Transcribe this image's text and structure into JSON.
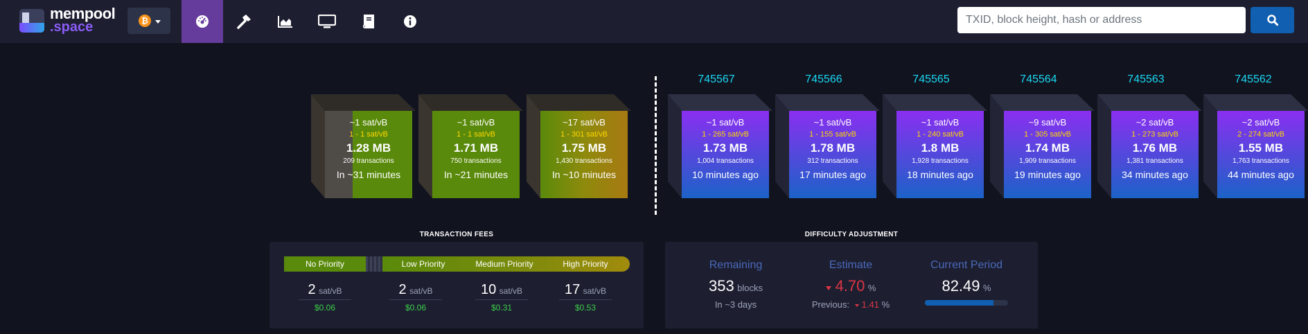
{
  "brand": {
    "name": "mempool",
    "suffix": ".space"
  },
  "network": {
    "icon": "bitcoin-icon",
    "symbol": "₿"
  },
  "nav": [
    {
      "name": "dashboard",
      "icon": "gauge-icon",
      "active": true
    },
    {
      "name": "mining",
      "icon": "hammer-icon"
    },
    {
      "name": "graphs",
      "icon": "area-chart-icon"
    },
    {
      "name": "tv-view",
      "icon": "monitor-icon"
    },
    {
      "name": "documentation",
      "icon": "book-icon"
    },
    {
      "name": "about",
      "icon": "info-icon"
    }
  ],
  "search": {
    "placeholder": "TXID, block height, hash or address",
    "button_icon": "search-icon"
  },
  "pending_blocks": [
    {
      "fee": "~1 sat/vB",
      "range": "1 - 1 sat/vB",
      "size": "1.28 MB",
      "txs": "209 transactions",
      "eta": "In ~31 minutes"
    },
    {
      "fee": "~1 sat/vB",
      "range": "1 - 1 sat/vB",
      "size": "1.71 MB",
      "txs": "750 transactions",
      "eta": "In ~21 minutes"
    },
    {
      "fee": "~17 sat/vB",
      "range": "1 - 301 sat/vB",
      "size": "1.75 MB",
      "txs": "1,430 transactions",
      "eta": "In ~10 minutes"
    }
  ],
  "mined_blocks": [
    {
      "height": "745567",
      "fee": "~1 sat/vB",
      "range": "1 - 265 sat/vB",
      "size": "1.73 MB",
      "txs": "1,004 transactions",
      "age": "10 minutes ago"
    },
    {
      "height": "745566",
      "fee": "~1 sat/vB",
      "range": "1 - 155 sat/vB",
      "size": "1.78 MB",
      "txs": "312 transactions",
      "age": "17 minutes ago"
    },
    {
      "height": "745565",
      "fee": "~1 sat/vB",
      "range": "1 - 240 sat/vB",
      "size": "1.8 MB",
      "txs": "1,928 transactions",
      "age": "18 minutes ago"
    },
    {
      "height": "745564",
      "fee": "~9 sat/vB",
      "range": "1 - 305 sat/vB",
      "size": "1.74 MB",
      "txs": "1,909 transactions",
      "age": "19 minutes ago"
    },
    {
      "height": "745563",
      "fee": "~2 sat/vB",
      "range": "1 - 273 sat/vB",
      "size": "1.76 MB",
      "txs": "1,381 transactions",
      "age": "34 minutes ago"
    },
    {
      "height": "745562",
      "fee": "~2 sat/vB",
      "range": "2 - 274 sat/vB",
      "size": "1.55 MB",
      "txs": "1,763 transactions",
      "age": "44 minutes ago"
    }
  ],
  "fees": {
    "title": "TRANSACTION FEES",
    "unit": "sat/vB",
    "priorities": [
      {
        "label": "No Priority",
        "value": "2",
        "usd": "$0.06"
      },
      {
        "label": "Low Priority",
        "value": "2",
        "usd": "$0.06"
      },
      {
        "label": "Medium Priority",
        "value": "10",
        "usd": "$0.31"
      },
      {
        "label": "High Priority",
        "value": "17",
        "usd": "$0.53"
      }
    ]
  },
  "difficulty": {
    "title": "DIFFICULTY ADJUSTMENT",
    "remaining": {
      "label": "Remaining",
      "value": "353",
      "unit": "blocks",
      "sub": "In ~3 days"
    },
    "estimate": {
      "label": "Estimate",
      "value": "4.70",
      "unit": "%",
      "previous_label": "Previous:",
      "previous_value": "1.41",
      "previous_unit": "%"
    },
    "current_period": {
      "label": "Current Period",
      "value": "82.49",
      "unit": "%",
      "progress": 0.8249
    }
  },
  "colors": {
    "accent": "#653b9c",
    "height": "#1bd8f4",
    "mined_top": "#8a2ff0",
    "mined_bottom": "#1c62c8",
    "fee_green": "#5a8a0b",
    "fee_yellow": "#a18b0c",
    "usd": "#3bcc49",
    "down": "#dc3545"
  }
}
